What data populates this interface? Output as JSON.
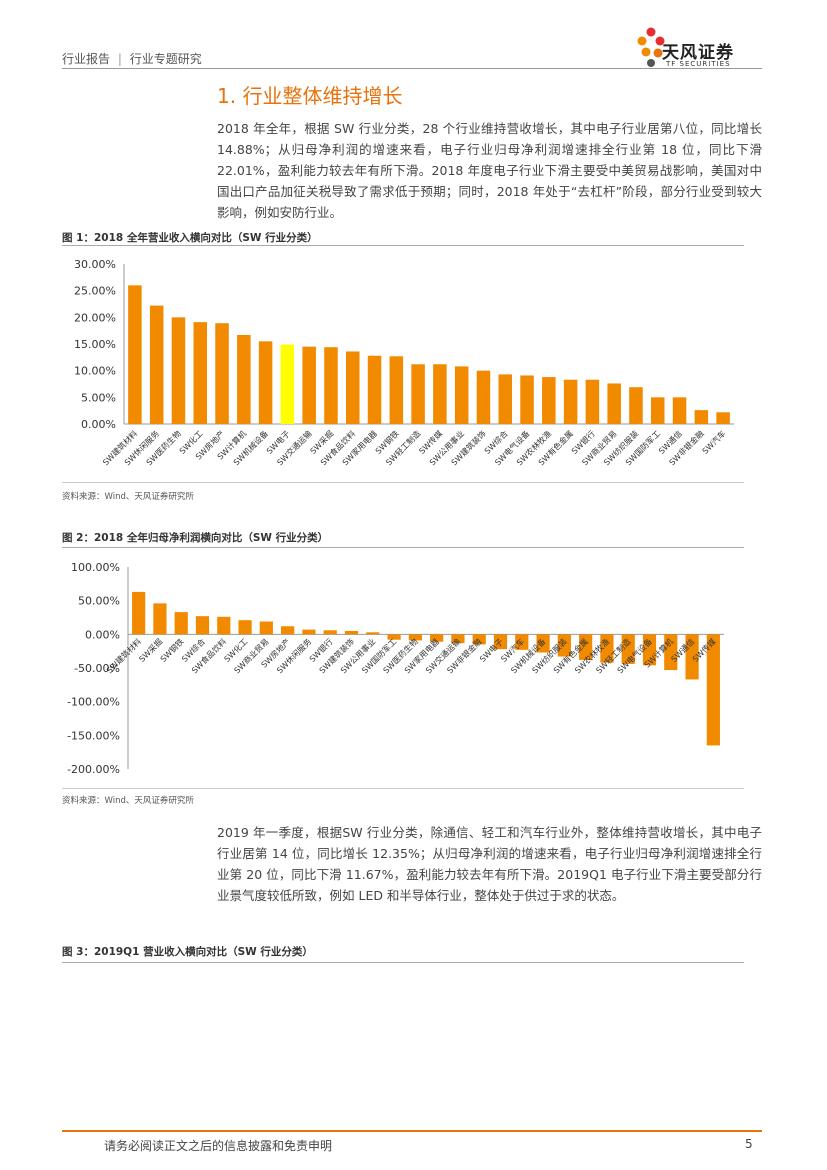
{
  "header": {
    "report_type": "行业报告",
    "separator": "|",
    "report_category": "行业专题研究",
    "logo_cn": "天风证券",
    "logo_en": "TF SECURITIES"
  },
  "section": {
    "title": "1. 行业整体维持增长"
  },
  "paragraphs": {
    "p1": "2018 年全年，根据 SW 行业分类，28 个行业维持营收增长，其中电子行业居第八位，同比增长 14.88%；从归母净利润的增速来看，电子行业归母净利润增速排全行业第 18 位，同比下滑 22.01%，盈利能力较去年有所下滑。2018 年度电子行业下滑主要受中美贸易战影响，美国对中国出口产品加征关税导致了需求低于预期；同时，2018 年处于“去杠杆”阶段，部分行业受到较大影响，例如安防行业。",
    "p2": "2019 年一季度，根据SW 行业分类，除通信、轻工和汽车行业外，整体维持营收增长，其中电子行业居第 14 位，同比增长 12.35%；从归母净利润的增速来看，电子行业归母净利润增速排全行业第 20 位，同比下滑 11.67%，盈利能力较去年有所下滑。2019Q1 电子行业下滑主要受部分行业景气度较低所致，例如 LED 和半导体行业，整体处于供过于求的状态。"
  },
  "figures": {
    "fig1_title": "图 1：2018 全年营业收入横向对比（SW 行业分类）",
    "fig2_title": "图 2：2018 全年归母净利润横向对比（SW 行业分类）",
    "fig3_title": "图 3：2019Q1 营业收入横向对比（SW 行业分类）",
    "source": "资料来源：Wind、天风证券研究所"
  },
  "chart_data": [
    {
      "type": "bar",
      "title": "2018 全年营业收入横向对比（SW 行业分类）",
      "categories": [
        "SW建筑材料",
        "SW休闲服务",
        "SW医药生物",
        "SW化工",
        "SW房地产",
        "SW计算机",
        "SW机械设备",
        "SW电子",
        "SW交通运输",
        "SW采掘",
        "SW食品饮料",
        "SW家用电器",
        "SW钢铁",
        "SW轻工制造",
        "SW传媒",
        "SW公用事业",
        "SW建筑装饰",
        "SW综合",
        "SW电气设备",
        "SW农林牧渔",
        "SW有色金属",
        "SW银行",
        "SW商业贸易",
        "SW纺织服装",
        "SW国防军工",
        "SW通信",
        "SW非银金融",
        "SW汽车"
      ],
      "values": [
        26.0,
        22.2,
        20.0,
        19.1,
        18.9,
        16.7,
        15.5,
        14.88,
        14.5,
        14.4,
        13.6,
        12.8,
        12.7,
        11.2,
        11.2,
        10.8,
        10.0,
        9.3,
        9.1,
        8.8,
        8.3,
        8.3,
        7.6,
        6.9,
        5.0,
        5.0,
        2.6,
        2.2
      ],
      "highlight": "SW电子",
      "ylim": [
        0,
        30
      ],
      "yticks": [
        "0.00%",
        "5.00%",
        "10.00%",
        "15.00%",
        "20.00%",
        "25.00%",
        "30.00%"
      ],
      "colors": {
        "bar": "#F28A00",
        "highlight": "#FFFF00"
      }
    },
    {
      "type": "bar",
      "title": "2018 全年归母净利润横向对比（SW 行业分类）",
      "categories": [
        "SW建筑材料",
        "SW采掘",
        "SW钢铁",
        "SW综合",
        "SW食品饮料",
        "SW化工",
        "SW商业贸易",
        "SW房地产",
        "SW休闲服务",
        "SW银行",
        "SW建筑装饰",
        "SW公用事业",
        "SW国防军工",
        "SW医药生物",
        "SW家用电器",
        "SW交通运输",
        "SW非银金融",
        "SW电子",
        "SW汽车",
        "SW机械设备",
        "SW纺织服装",
        "SW有色金属",
        "SW农林牧渔",
        "SW轻工制造",
        "SW电气设备",
        "SW计算机",
        "SW通信",
        "SW传媒"
      ],
      "values": [
        63,
        46,
        33,
        27,
        26,
        21,
        19,
        12,
        7,
        6,
        5,
        3,
        -8,
        -9,
        -11,
        -13,
        -15,
        -22,
        -23,
        -27,
        -33,
        -38,
        -42,
        -44,
        -46,
        -53,
        -67,
        -165
      ],
      "ylim": [
        -200,
        100
      ],
      "yticks": [
        "-200.00%",
        "-150.00%",
        "-100.00%",
        "-50.00%",
        "0.00%",
        "50.00%",
        "100.00%"
      ],
      "colors": {
        "bar": "#F28A00"
      }
    }
  ],
  "footer": {
    "disclaimer": "请务必阅读正文之后的信息披露和免责申明",
    "page": "5"
  }
}
